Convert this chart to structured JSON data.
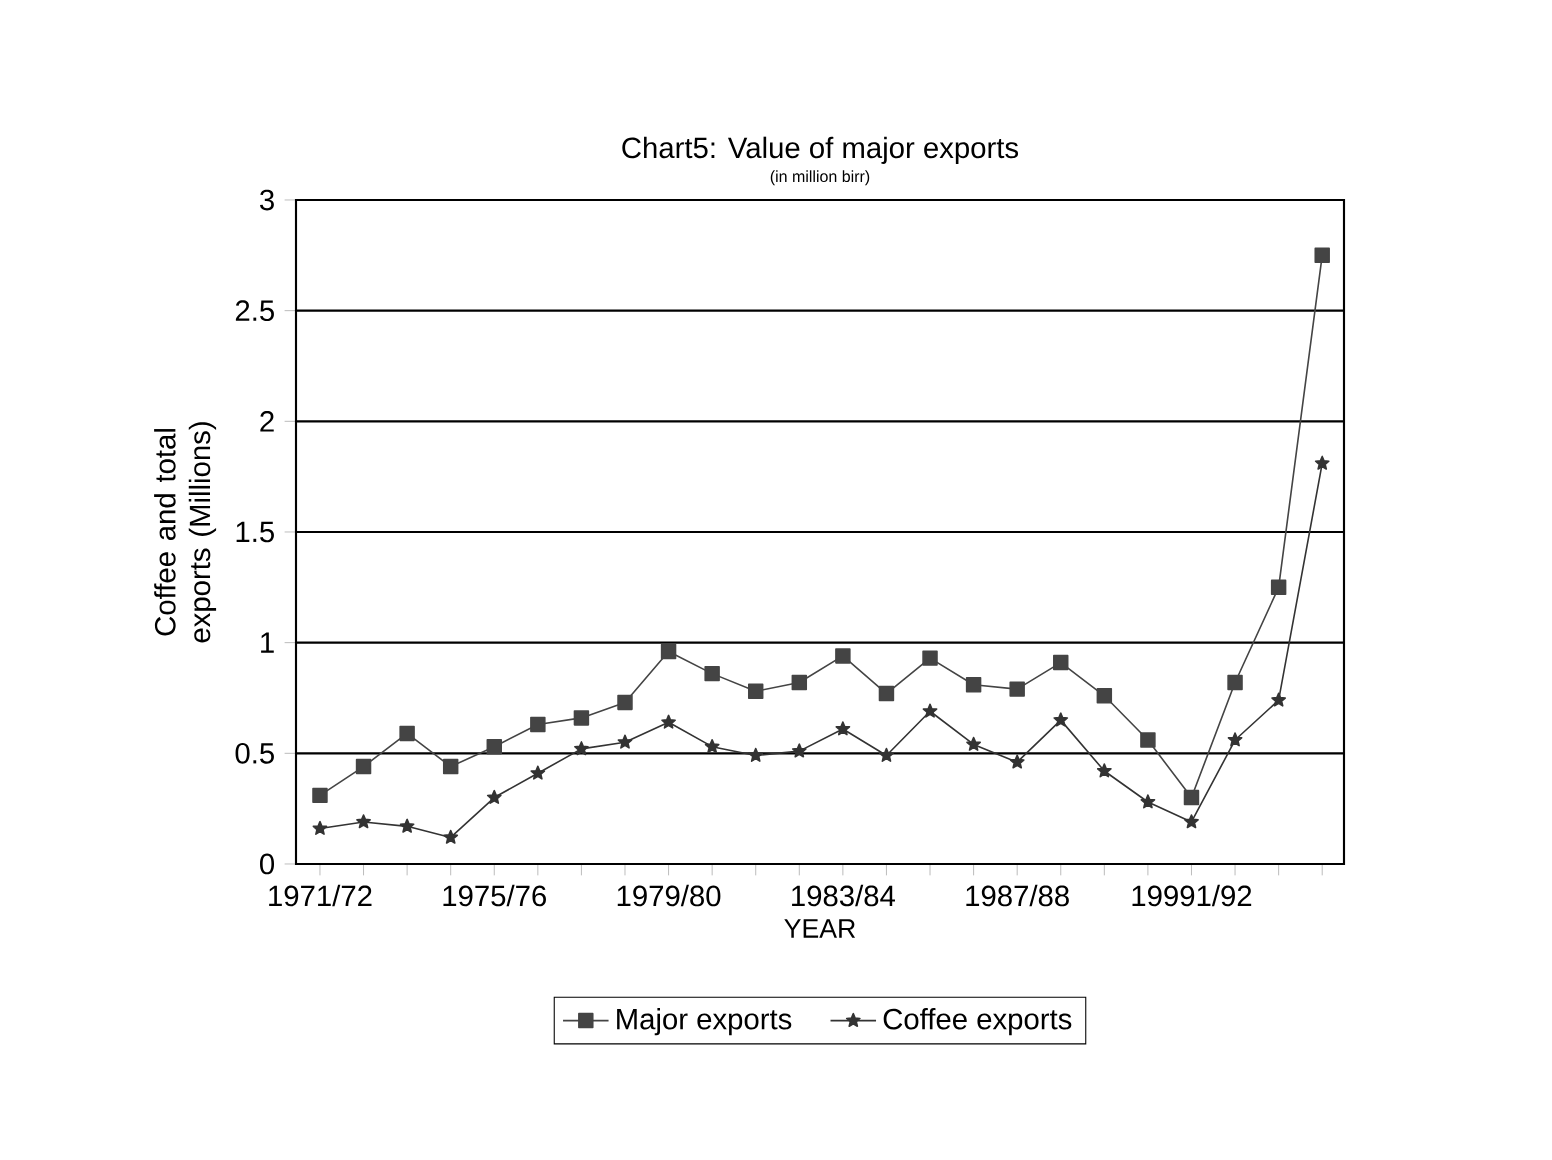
{
  "chart_data": {
    "type": "line",
    "title": "Chart5: Value of major exports",
    "subtitle": "(in million birr)",
    "xlabel": "YEAR",
    "ylabel": "Coffee and total exports (Millions)",
    "categories": [
      "1971/72",
      null,
      null,
      null,
      "1975/76",
      null,
      null,
      null,
      "1979/80",
      null,
      null,
      null,
      "1983/84",
      null,
      null,
      null,
      "1987/88",
      null,
      null,
      null,
      "19991/92",
      null,
      null,
      null
    ],
    "series": [
      {
        "name": "Major exports",
        "color": "#444444",
        "marker": "square",
        "values": [
          0.31,
          0.44,
          0.59,
          0.44,
          0.53,
          0.63,
          0.66,
          0.73,
          0.96,
          0.86,
          0.78,
          0.82,
          0.94,
          0.77,
          0.93,
          0.81,
          0.79,
          0.91,
          0.76,
          0.56,
          0.3,
          0.82,
          1.25,
          2.75
        ]
      },
      {
        "name": "Coffee exports",
        "color": "#333333",
        "marker": "star",
        "values": [
          0.16,
          0.19,
          0.17,
          0.12,
          0.3,
          0.41,
          0.52,
          0.55,
          0.64,
          0.53,
          0.49,
          0.51,
          0.61,
          0.49,
          0.69,
          0.54,
          0.46,
          0.65,
          0.42,
          0.28,
          0.19,
          0.56,
          0.74,
          1.81
        ]
      }
    ],
    "ylim": [
      0,
      3
    ],
    "yticks": [
      0,
      0.5,
      1,
      1.5,
      2,
      2.5,
      3
    ],
    "grid": "y",
    "legend": "bottom",
    "line_style": "solid"
  }
}
